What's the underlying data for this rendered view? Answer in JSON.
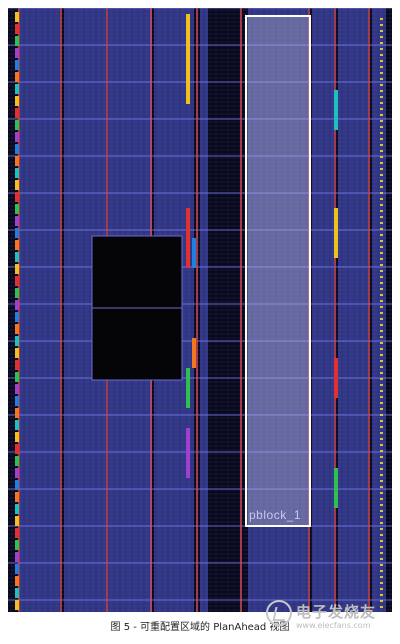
{
  "device_view": {
    "pblock_label": "pblock_1",
    "colors": {
      "background": "#08081a",
      "clb_column": "#3a3f9a",
      "clb_grid": "#5a60c8",
      "region_line": "#7a7ef0",
      "pblock_border": "#ffffff",
      "pblock_fill": "#c8c8d8",
      "bram_column": "#e05060",
      "dsp_column": "#c83070",
      "dark_block": "#050508"
    },
    "column_colors": [
      "#f0c020",
      "#e03030",
      "#30c050",
      "#a040d0",
      "#2080e0",
      "#f07820",
      "#20c0c0"
    ]
  },
  "caption": "图 5 - 可重配置区域的 PlanAhead 视图",
  "watermark": {
    "title": "电子发烧友",
    "url": "www.elecfans.com"
  }
}
